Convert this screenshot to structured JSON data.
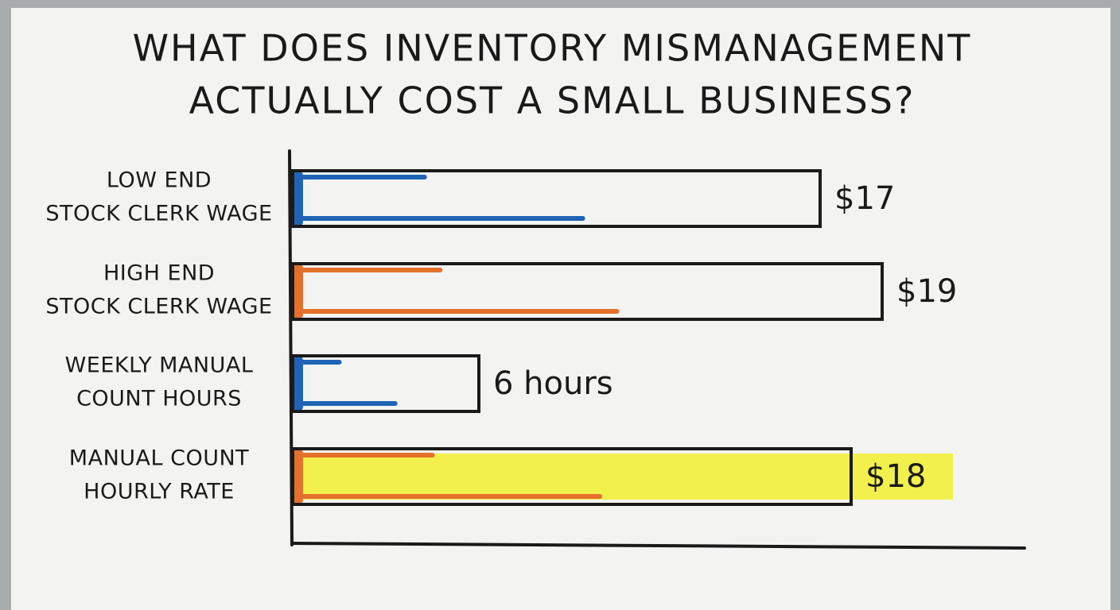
{
  "chart_data": {
    "type": "hbar",
    "title": [
      "WHAT DOES INVENTORY MISMANAGEMENT",
      "ACTUALLY COST A SMALL BUSINESS?"
    ],
    "categories": [
      [
        "LOW END",
        "STOCK CLERK WAGE"
      ],
      [
        "HIGH END",
        "STOCK CLERK WAGE"
      ],
      [
        "WEEKLY MANUAL",
        "COUNT HOURS"
      ],
      [
        "MANUAL COUNT",
        "HOURLY RATE"
      ]
    ],
    "values": [
      17,
      19,
      6,
      18
    ],
    "value_labels": [
      "$17",
      "$19",
      "6 hours",
      "$18"
    ],
    "colors": [
      "#1f64b4",
      "#e5702c",
      "#1f64b4",
      "#e5702c"
    ],
    "highlight_index": 3,
    "highlight_color": "#f2ef3a"
  }
}
